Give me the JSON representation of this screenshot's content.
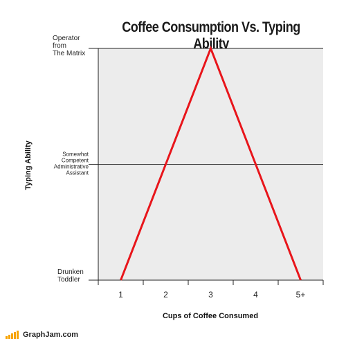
{
  "chart_data": {
    "type": "line",
    "title": "Coffee Consumption Vs. Typing Ability",
    "xlabel": "Cups of Coffee Consumed",
    "ylabel": "Typing Ability",
    "categories": [
      "1",
      "2",
      "3",
      "4",
      "5+"
    ],
    "y_levels": [
      {
        "value": 0,
        "lines": [
          "Drunken",
          "Toddler"
        ]
      },
      {
        "value": 0.5,
        "lines": [
          "Somewhat",
          "Competent",
          "Administrative",
          "Assistant"
        ]
      },
      {
        "value": 1,
        "lines": [
          "Operator",
          "from",
          "The Matrix"
        ]
      }
    ],
    "ylim": [
      0,
      1
    ],
    "series": [
      {
        "color": "#e8151b",
        "points": [
          [
            1,
            0
          ],
          [
            2,
            0.5
          ],
          [
            3,
            1
          ],
          [
            4,
            0.5
          ],
          [
            5,
            0
          ]
        ]
      }
    ],
    "grid": "horizontal at mid level",
    "plot_background": "#ececec",
    "line_color": "#e8151b"
  },
  "footer": {
    "brand": "GraphJam.com",
    "bar_color": "#f7a400"
  }
}
